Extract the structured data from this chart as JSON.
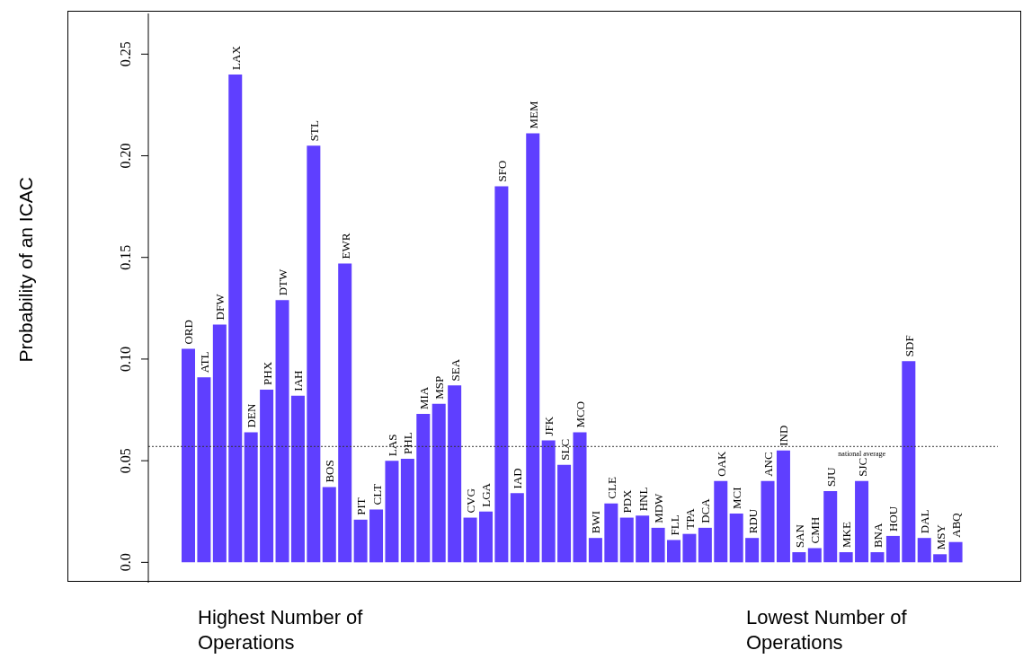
{
  "chart_data": {
    "type": "bar",
    "ylabel": "Probability of an ICAC",
    "categories": [
      "ORD",
      "ATL",
      "DFW",
      "LAX",
      "DEN",
      "PHX",
      "DTW",
      "IAH",
      "STL",
      "BOS",
      "EWR",
      "PIT",
      "CLT",
      "LAS",
      "PHL",
      "MIA",
      "MSP",
      "SEA",
      "CVG",
      "LGA",
      "SFO",
      "IAD",
      "MEM",
      "JFK",
      "SLC",
      "MCO",
      "BWI",
      "CLE",
      "PDX",
      "HNL",
      "MDW",
      "FLL",
      "TPA",
      "DCA",
      "OAK",
      "MCI",
      "RDU",
      "ANC",
      "IND",
      "SAN",
      "CMH",
      "SJU",
      "MKE",
      "SJC",
      "BNA",
      "HOU",
      "SDF",
      "DAL",
      "MSY",
      "ABQ"
    ],
    "values": [
      0.105,
      0.091,
      0.117,
      0.24,
      0.064,
      0.085,
      0.129,
      0.082,
      0.205,
      0.037,
      0.147,
      0.021,
      0.026,
      0.05,
      0.051,
      0.073,
      0.078,
      0.087,
      0.022,
      0.025,
      0.185,
      0.034,
      0.211,
      0.06,
      0.048,
      0.064,
      0.012,
      0.029,
      0.022,
      0.023,
      0.017,
      0.011,
      0.014,
      0.017,
      0.04,
      0.024,
      0.012,
      0.04,
      0.055,
      0.005,
      0.007,
      0.035,
      0.005,
      0.04,
      0.005,
      0.013,
      0.099,
      0.012,
      0.004,
      0.01
    ],
    "color": "#5f3fff",
    "ylim": [
      -0.01,
      0.27
    ],
    "yticks": [
      {
        "value": 0,
        "label": "0.0"
      },
      0.05,
      {
        "value": 0.1,
        "label": "0.10"
      },
      0.15,
      {
        "value": 0.2,
        "label": "0.20"
      },
      0.25
    ],
    "ref_lines": [
      {
        "axis": "y",
        "value": 0.057,
        "label": "national average",
        "line_style": "dotted",
        "color": "#333333"
      }
    ],
    "annotations": [
      "Highest Number of Operations",
      "Lowest Number of Operations"
    ],
    "grid": false,
    "legend": false
  }
}
